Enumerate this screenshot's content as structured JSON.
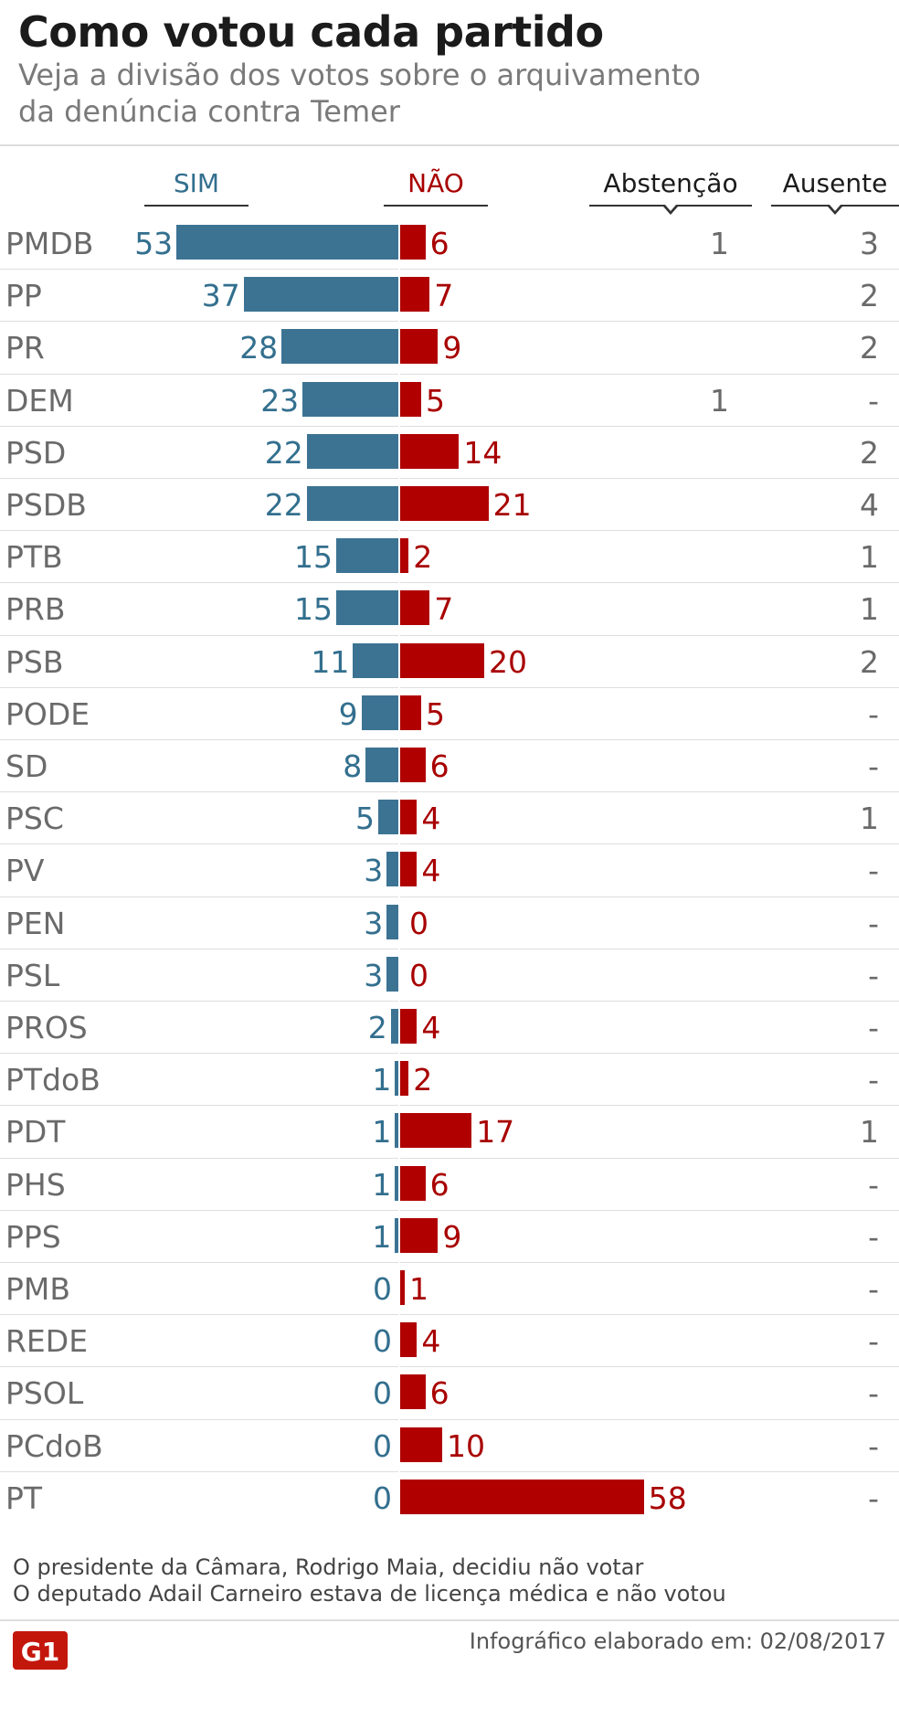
{
  "header": {
    "title": "Como votou cada partido",
    "subtitle_line1": "Veja a divisão dos votos sobre o arquivamento",
    "subtitle_line2": "da denúncia contra Temer"
  },
  "columns": {
    "sim": "SIM",
    "nao": "NÃO",
    "abstencao": "Abstenção",
    "ausente": "Ausente"
  },
  "colors": {
    "sim": "#3c7393",
    "nao": "#b00000",
    "brand": "#c4170c"
  },
  "chart_data": {
    "type": "bar",
    "title": "Como votou cada partido",
    "subtitle": "Veja a divisão dos votos sobre o arquivamento da denúncia contra Temer",
    "categories": [
      "PMDB",
      "PP",
      "PR",
      "DEM",
      "PSD",
      "PSDB",
      "PTB",
      "PRB",
      "PSB",
      "PODE",
      "SD",
      "PSC",
      "PV",
      "PEN",
      "PSL",
      "PROS",
      "PTdoB",
      "PDT",
      "PHS",
      "PPS",
      "PMB",
      "REDE",
      "PSOL",
      "PCdoB",
      "PT"
    ],
    "series": [
      {
        "name": "SIM",
        "values": [
          53,
          37,
          28,
          23,
          22,
          22,
          15,
          15,
          11,
          9,
          8,
          5,
          3,
          3,
          3,
          2,
          1,
          1,
          1,
          1,
          0,
          0,
          0,
          0,
          0
        ]
      },
      {
        "name": "NÃO",
        "values": [
          6,
          7,
          9,
          5,
          14,
          21,
          2,
          7,
          20,
          5,
          6,
          4,
          4,
          0,
          0,
          4,
          2,
          17,
          6,
          9,
          1,
          4,
          6,
          10,
          58
        ]
      }
    ],
    "abstencao": [
      "1",
      "",
      "",
      "1",
      "",
      "",
      "",
      "",
      "",
      "",
      "",
      "",
      "",
      "",
      "",
      "",
      "",
      "",
      "",
      "",
      "",
      "",
      "",
      "",
      ""
    ],
    "ausente": [
      "3",
      "2",
      "2",
      "-",
      "2",
      "4",
      "1",
      "1",
      "2",
      "-",
      "-",
      "1",
      "-",
      "-",
      "-",
      "-",
      "-",
      "1",
      "-",
      "-",
      "-",
      "-",
      "-",
      "-",
      "-"
    ]
  },
  "notes": {
    "line1": "O presidente da Câmara, Rodrigo Maia, decidiu não votar",
    "line2": "O deputado Adail Carneiro  estava de licença médica e não votou"
  },
  "footer": {
    "credit": "Infográfico elaborado em: 02/08/2017",
    "logo_text": "G1"
  }
}
